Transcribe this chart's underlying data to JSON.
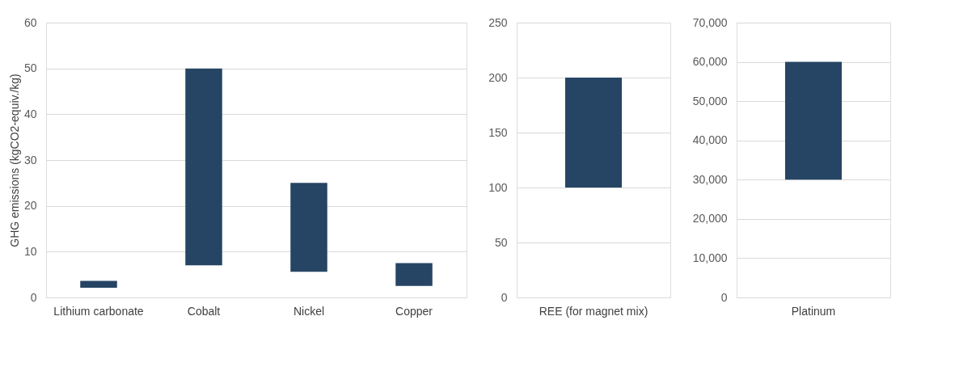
{
  "chart_data": [
    {
      "type": "bar",
      "ylabel": "GHG emissions  (kgCO2-equiv./kg)",
      "categories": [
        "Lithium carbonate",
        "Cobalt",
        "Nickel",
        "Copper"
      ],
      "base": [
        2.1,
        7,
        5.6,
        2.5
      ],
      "values": [
        1.5,
        43,
        19.4,
        5
      ],
      "color": "#264564",
      "ylim": [
        0,
        60
      ],
      "yticks": [
        0,
        10,
        20,
        30,
        40,
        50,
        60
      ],
      "grid": "y"
    },
    {
      "type": "bar",
      "categories": [
        "REE (for magnet mix)"
      ],
      "base": [
        100
      ],
      "values": [
        100
      ],
      "color": "#264564",
      "ylim": [
        0,
        250
      ],
      "yticks": [
        0,
        50,
        100,
        150,
        200,
        250
      ],
      "grid": "y"
    },
    {
      "type": "bar",
      "categories": [
        "Platinum"
      ],
      "base": [
        30000
      ],
      "values": [
        30000
      ],
      "color": "#264564",
      "ylim": [
        0,
        70000
      ],
      "yticks": [
        0,
        {
          "value": 10000,
          "label": "10,000"
        },
        {
          "value": 20000,
          "label": "20,000"
        },
        {
          "value": 30000,
          "label": "30,000"
        },
        {
          "value": 40000,
          "label": "40,000"
        },
        {
          "value": 50000,
          "label": "50,000"
        },
        {
          "value": 60000,
          "label": "60,000"
        },
        {
          "value": 70000,
          "label": "70,000"
        }
      ],
      "grid": "y"
    }
  ]
}
